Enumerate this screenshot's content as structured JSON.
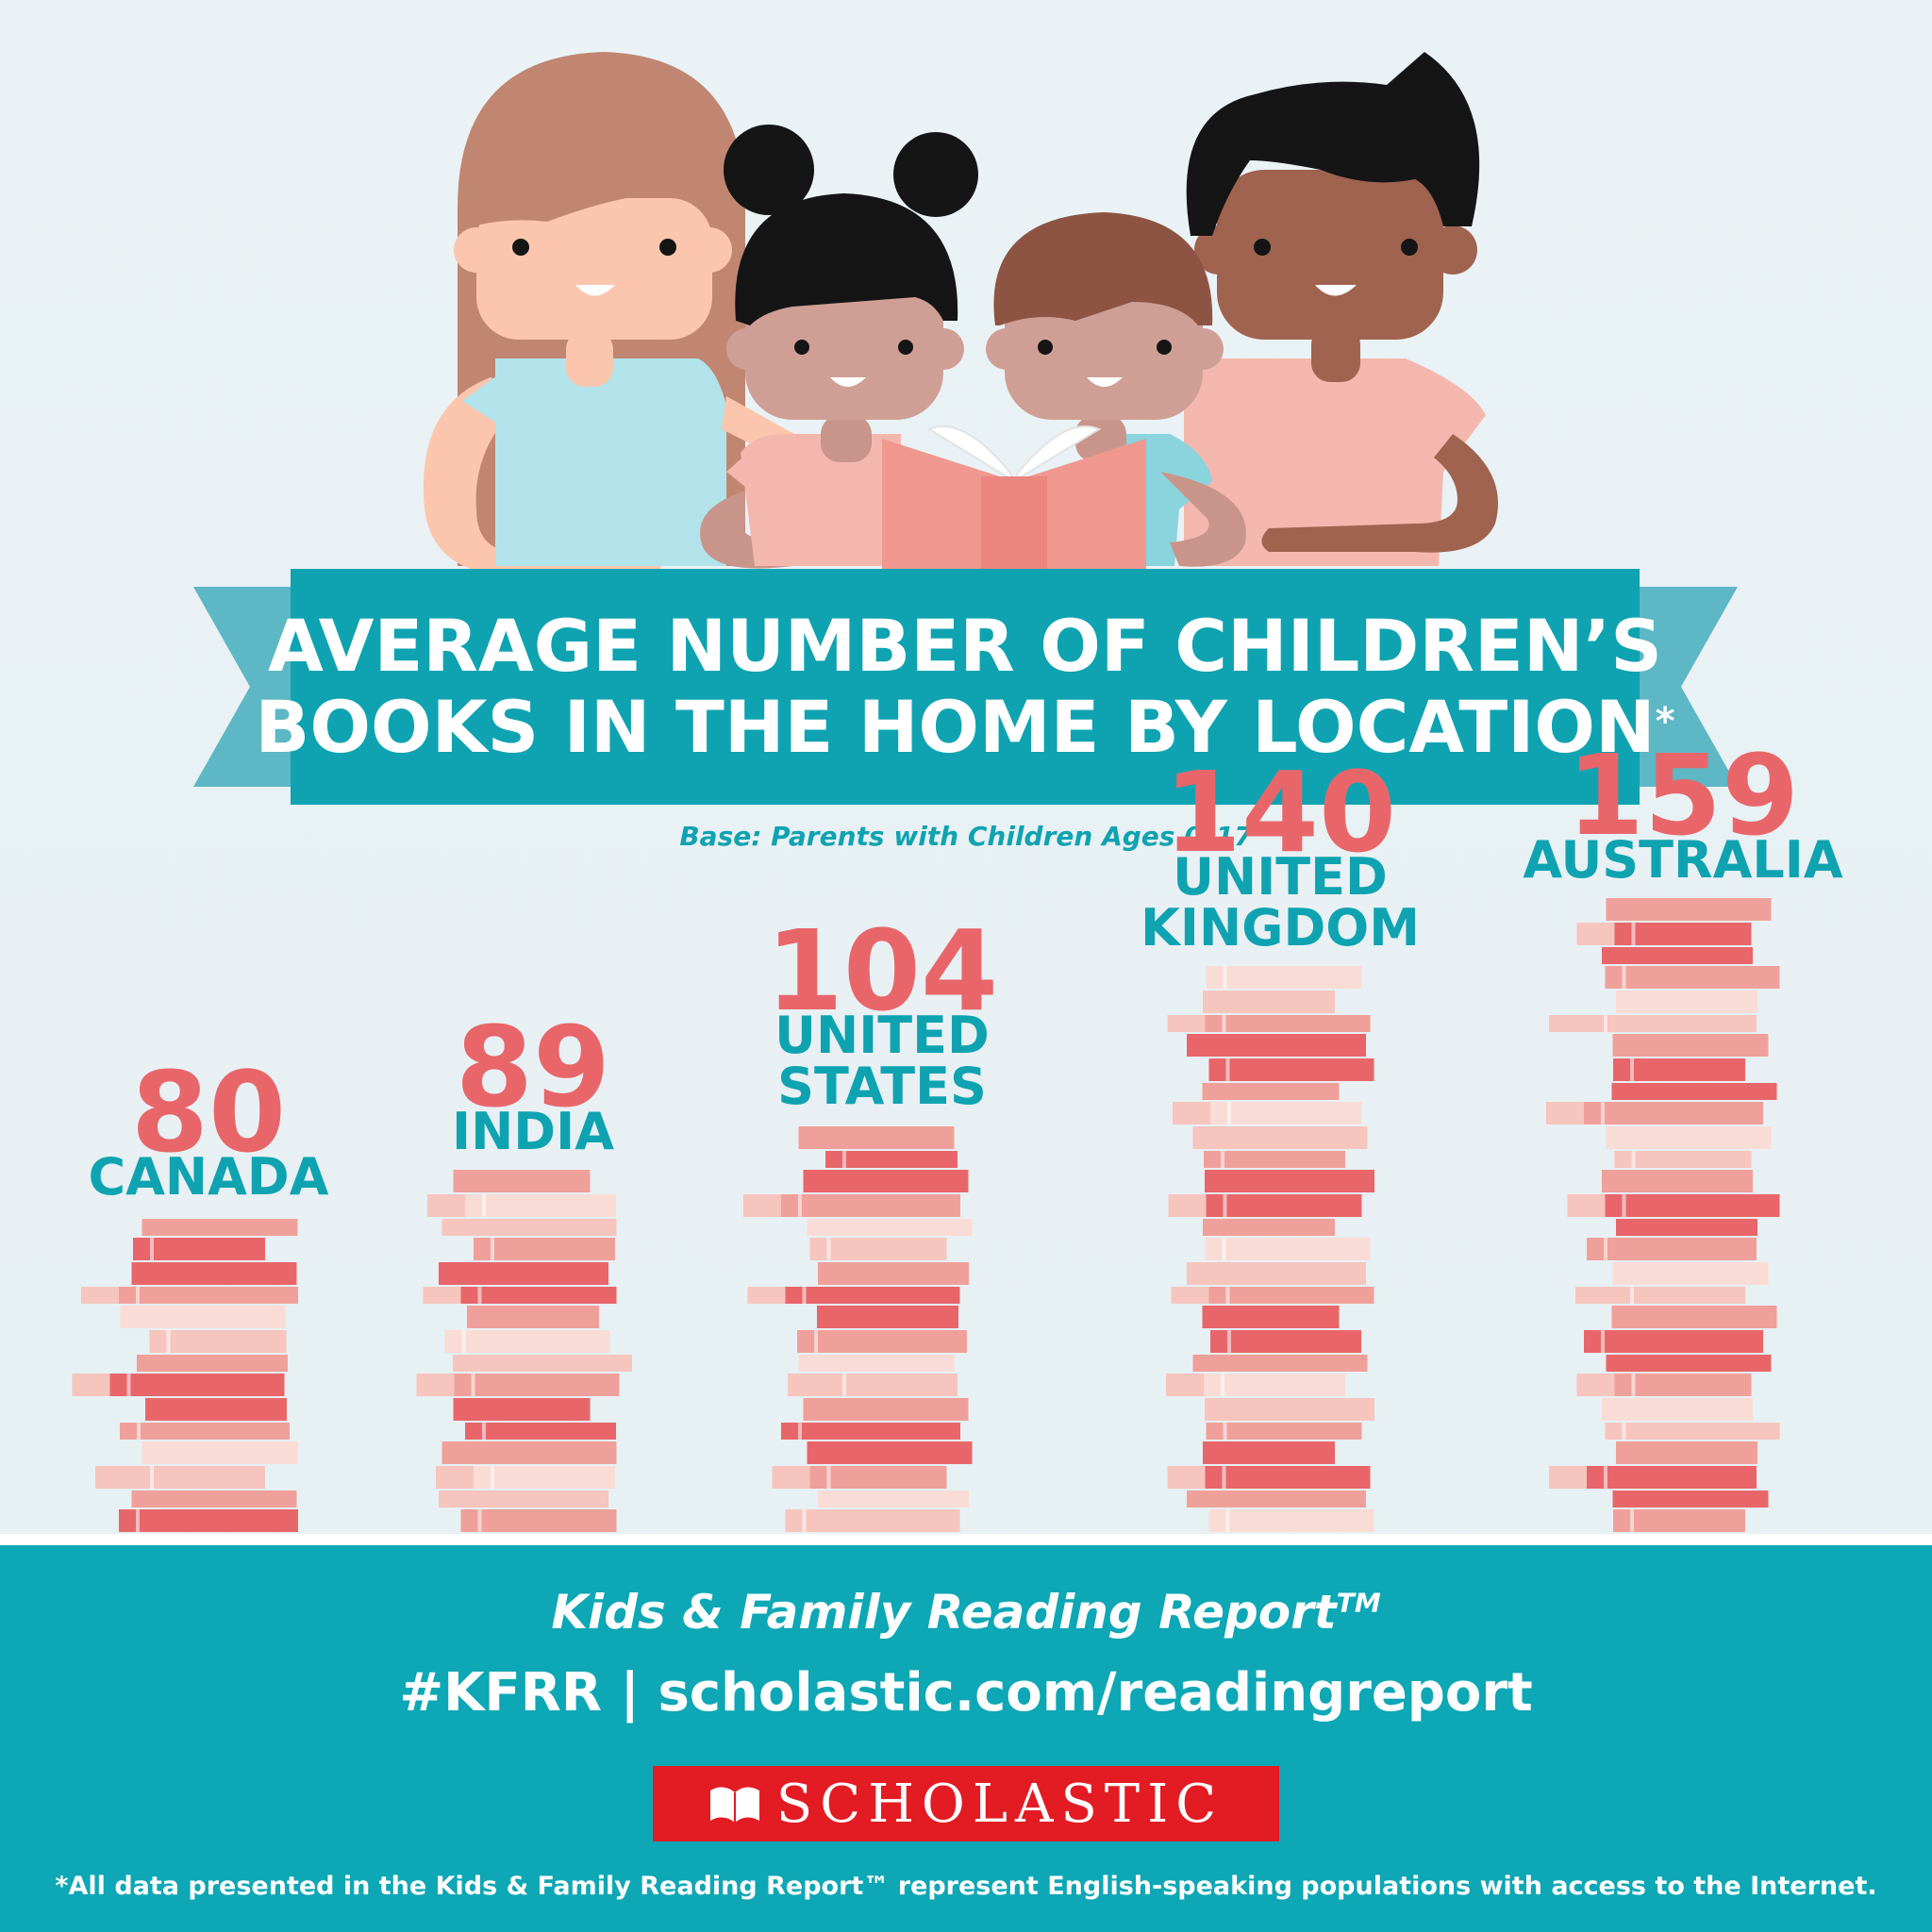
{
  "header": {
    "title_line1": "AVERAGE NUMBER OF CHILDREN’S",
    "title_line2": "BOOKS IN THE HOME BY LOCATION",
    "title_asterisk": "*",
    "subtitle": "Base: Parents with Children Ages 0–17"
  },
  "chart_data": {
    "type": "bar",
    "title": "AVERAGE NUMBER OF CHILDREN’S BOOKS IN THE HOME BY LOCATION*",
    "subtitle": "Base: Parents with Children Ages 0–17",
    "categories": [
      "CANADA",
      "INDIA",
      "UNITED STATES",
      "UNITED KINGDOM",
      "AUSTRALIA"
    ],
    "values": [
      80,
      89,
      104,
      140,
      159
    ],
    "value_labels": [
      "80",
      "89",
      "104",
      "140",
      "159"
    ],
    "mark_style": "stacked-books",
    "colors": {
      "value": "#e8666a",
      "label": "#0fa3b1",
      "book_dark": "#e8666a",
      "book_mid": "#f0a09a",
      "book_light": "#f6c5be",
      "book_pale": "#fadcd6"
    },
    "grid": false,
    "legend": "none"
  },
  "footer": {
    "report_name": "Kids & Family Reading Report",
    "report_tm": "TM",
    "links": "#KFRR | scholastic.com/readingreport",
    "logo_text": "SCHOLASTIC",
    "footnote": "*All data presented in the Kids & Family Reading Report™ represent English-speaking populations with access to the Internet."
  },
  "illustration": {
    "description_icons": [
      "mother-figure",
      "girl-figure",
      "boy-figure",
      "father-figure",
      "open-book-icon"
    ]
  },
  "colors": {
    "teal": "#0fa3b1",
    "ribbon_tail": "#5db7c4",
    "coral": "#e8666a",
    "logo_red": "#e31b23"
  }
}
